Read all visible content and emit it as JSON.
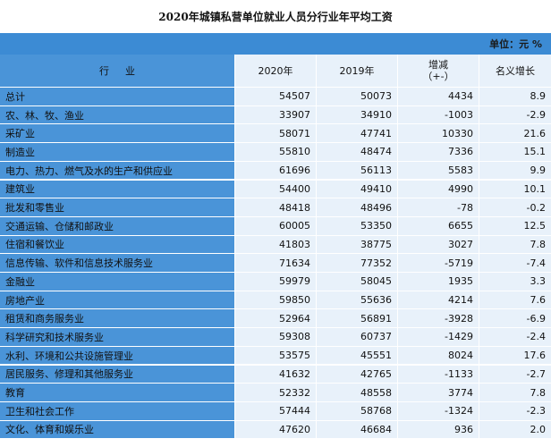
{
  "title": "2020年城镇私营单位就业人员分行业年平均工资",
  "unit": "单位：元  %",
  "header": {
    "industry": "行业",
    "y2020": "2020年",
    "y2019": "2019年",
    "diff": "增减",
    "diff_sub": "（+-）",
    "growth": "名义增长"
  },
  "colors": {
    "header_band": "#3c8bd4",
    "name_column": "#4a94d8",
    "value_cells": "#e8f1fa"
  },
  "rows": [
    {
      "name": "总计",
      "y2020": "54507",
      "y2019": "50073",
      "diff": "4434",
      "growth": "8.9"
    },
    {
      "name": "农、林、牧、渔业",
      "y2020": "33907",
      "y2019": "34910",
      "diff": "-1003",
      "growth": "-2.9"
    },
    {
      "name": "采矿业",
      "y2020": "58071",
      "y2019": "47741",
      "diff": "10330",
      "growth": "21.6"
    },
    {
      "name": "制造业",
      "y2020": "55810",
      "y2019": "48474",
      "diff": "7336",
      "growth": "15.1"
    },
    {
      "name": "电力、热力、燃气及水的生产和供应业",
      "y2020": "61696",
      "y2019": "56113",
      "diff": "5583",
      "growth": "9.9"
    },
    {
      "name": "建筑业",
      "y2020": "54400",
      "y2019": "49410",
      "diff": "4990",
      "growth": "10.1"
    },
    {
      "name": "批发和零售业",
      "y2020": "48418",
      "y2019": "48496",
      "diff": "-78",
      "growth": "-0.2"
    },
    {
      "name": "交通运输、仓储和邮政业",
      "y2020": "60005",
      "y2019": "53350",
      "diff": "6655",
      "growth": "12.5"
    },
    {
      "name": "住宿和餐饮业",
      "y2020": "41803",
      "y2019": "38775",
      "diff": "3027",
      "growth": "7.8"
    },
    {
      "name": "信息传输、软件和信息技术服务业",
      "y2020": "71634",
      "y2019": "77352",
      "diff": "-5719",
      "growth": "-7.4"
    },
    {
      "name": "金融业",
      "y2020": "59979",
      "y2019": "58045",
      "diff": "1935",
      "growth": "3.3"
    },
    {
      "name": "房地产业",
      "y2020": "59850",
      "y2019": "55636",
      "diff": "4214",
      "growth": "7.6"
    },
    {
      "name": "租赁和商务服务业",
      "y2020": "52964",
      "y2019": "56891",
      "diff": "-3928",
      "growth": "-6.9"
    },
    {
      "name": "科学研究和技术服务业",
      "y2020": "59308",
      "y2019": "60737",
      "diff": "-1429",
      "growth": "-2.4"
    },
    {
      "name": "水利、环境和公共设施管理业",
      "y2020": "53575",
      "y2019": "45551",
      "diff": "8024",
      "growth": "17.6"
    },
    {
      "name": "居民服务、修理和其他服务业",
      "y2020": "41632",
      "y2019": "42765",
      "diff": "-1133",
      "growth": "-2.7"
    },
    {
      "name": "教育",
      "y2020": "52332",
      "y2019": "48558",
      "diff": "3774",
      "growth": "7.8"
    },
    {
      "name": "卫生和社会工作",
      "y2020": "57444",
      "y2019": "58768",
      "diff": "-1324",
      "growth": "-2.3"
    },
    {
      "name": "文化、体育和娱乐业",
      "y2020": "47620",
      "y2019": "46684",
      "diff": "936",
      "growth": "2.0"
    }
  ]
}
